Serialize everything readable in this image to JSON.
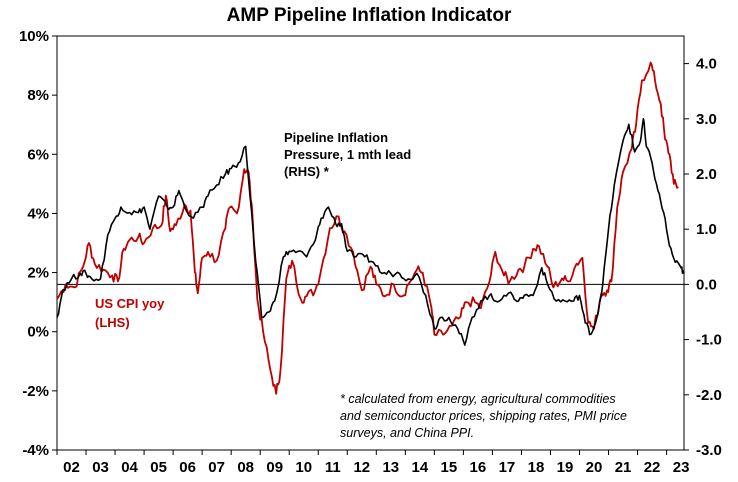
{
  "chart_data": {
    "type": "line",
    "title": "AMP Pipeline Inflation Indicator",
    "x_labels": [
      "02",
      "03",
      "04",
      "05",
      "06",
      "07",
      "08",
      "09",
      "10",
      "11",
      "12",
      "13",
      "14",
      "15",
      "16",
      "17",
      "18",
      "19",
      "20",
      "21",
      "22",
      "23"
    ],
    "x_range": [
      2002.0,
      2023.6
    ],
    "y_left": {
      "ticks": [
        "-4%",
        "-2%",
        "0%",
        "2%",
        "4%",
        "6%",
        "8%",
        "10%"
      ],
      "range": [
        -4,
        10
      ]
    },
    "y_right": {
      "ticks": [
        "-3.0",
        "-2.0",
        "-1.0",
        "0.0",
        "1.0",
        "2.0",
        "3.0",
        "4.0"
      ],
      "range": [
        -3,
        4.5
      ]
    },
    "zero_line_right": 0.0,
    "series": [
      {
        "name": "US CPI yoy (LHS)",
        "label_lines": [
          "US CPI yoy",
          "(LHS)"
        ],
        "axis": "left",
        "color": "#c00000",
        "points": [
          [
            2002.0,
            1.1
          ],
          [
            2002.3,
            1.6
          ],
          [
            2002.6,
            1.5
          ],
          [
            2002.9,
            2.2
          ],
          [
            2003.1,
            3.0
          ],
          [
            2003.3,
            2.3
          ],
          [
            2003.6,
            2.1
          ],
          [
            2003.9,
            1.9
          ],
          [
            2004.1,
            1.7
          ],
          [
            2004.3,
            2.8
          ],
          [
            2004.5,
            3.1
          ],
          [
            2004.8,
            3.2
          ],
          [
            2005.0,
            3.0
          ],
          [
            2005.3,
            3.5
          ],
          [
            2005.6,
            3.6
          ],
          [
            2005.75,
            4.6
          ],
          [
            2005.9,
            3.4
          ],
          [
            2006.1,
            3.6
          ],
          [
            2006.4,
            4.3
          ],
          [
            2006.6,
            4.1
          ],
          [
            2006.75,
            2.0
          ],
          [
            2006.85,
            1.3
          ],
          [
            2007.0,
            2.5
          ],
          [
            2007.2,
            2.7
          ],
          [
            2007.5,
            2.4
          ],
          [
            2007.8,
            3.5
          ],
          [
            2007.95,
            4.2
          ],
          [
            2008.2,
            4.0
          ],
          [
            2008.45,
            5.5
          ],
          [
            2008.6,
            5.4
          ],
          [
            2008.75,
            3.7
          ],
          [
            2008.9,
            1.1
          ],
          [
            2009.1,
            0.0
          ],
          [
            2009.35,
            -1.3
          ],
          [
            2009.55,
            -2.1
          ],
          [
            2009.7,
            -1.3
          ],
          [
            2009.9,
            1.8
          ],
          [
            2010.1,
            2.4
          ],
          [
            2010.4,
            1.1
          ],
          [
            2010.6,
            1.2
          ],
          [
            2010.9,
            1.4
          ],
          [
            2011.1,
            2.1
          ],
          [
            2011.4,
            3.5
          ],
          [
            2011.7,
            3.9
          ],
          [
            2011.9,
            3.4
          ],
          [
            2012.2,
            2.7
          ],
          [
            2012.5,
            1.4
          ],
          [
            2012.8,
            2.2
          ],
          [
            2013.0,
            1.6
          ],
          [
            2013.3,
            1.2
          ],
          [
            2013.6,
            1.6
          ],
          [
            2013.9,
            1.2
          ],
          [
            2014.1,
            1.6
          ],
          [
            2014.4,
            2.1
          ],
          [
            2014.6,
            2.0
          ],
          [
            2014.9,
            0.8
          ],
          [
            2015.0,
            -0.1
          ],
          [
            2015.3,
            -0.1
          ],
          [
            2015.6,
            0.2
          ],
          [
            2015.9,
            0.5
          ],
          [
            2016.1,
            1.0
          ],
          [
            2016.4,
            1.0
          ],
          [
            2016.6,
            0.8
          ],
          [
            2016.9,
            1.7
          ],
          [
            2017.1,
            2.7
          ],
          [
            2017.4,
            1.9
          ],
          [
            2017.6,
            1.7
          ],
          [
            2017.9,
            2.1
          ],
          [
            2018.1,
            2.2
          ],
          [
            2018.4,
            2.8
          ],
          [
            2018.6,
            2.9
          ],
          [
            2018.9,
            2.2
          ],
          [
            2019.1,
            1.5
          ],
          [
            2019.4,
            1.8
          ],
          [
            2019.6,
            1.7
          ],
          [
            2019.9,
            2.3
          ],
          [
            2020.1,
            2.5
          ],
          [
            2020.3,
            0.3
          ],
          [
            2020.5,
            0.1
          ],
          [
            2020.75,
            1.3
          ],
          [
            2020.95,
            1.4
          ],
          [
            2021.1,
            1.7
          ],
          [
            2021.3,
            4.2
          ],
          [
            2021.5,
            5.4
          ],
          [
            2021.8,
            6.2
          ],
          [
            2021.95,
            7.0
          ],
          [
            2022.15,
            8.5
          ],
          [
            2022.45,
            9.1
          ],
          [
            2022.6,
            8.5
          ],
          [
            2022.8,
            7.7
          ],
          [
            2022.95,
            6.5
          ],
          [
            2023.1,
            6.0
          ],
          [
            2023.25,
            5.0
          ],
          [
            2023.4,
            4.9
          ]
        ]
      },
      {
        "name": "Pipeline Inflation Pressure, 1 mth lead (RHS) *",
        "label_lines": [
          "Pipeline Inflation",
          "Pressure, 1 mth lead",
          "(RHS) *"
        ],
        "axis": "right",
        "color": "#000000",
        "points": [
          [
            2002.0,
            -0.6
          ],
          [
            2002.2,
            -0.1
          ],
          [
            2002.5,
            0.1
          ],
          [
            2002.8,
            0.2
          ],
          [
            2003.0,
            0.2
          ],
          [
            2003.2,
            0.1
          ],
          [
            2003.5,
            0.1
          ],
          [
            2003.75,
            0.9
          ],
          [
            2004.0,
            1.2
          ],
          [
            2004.2,
            1.4
          ],
          [
            2004.5,
            1.3
          ],
          [
            2004.8,
            1.3
          ],
          [
            2005.0,
            1.4
          ],
          [
            2005.2,
            1.0
          ],
          [
            2005.5,
            1.6
          ],
          [
            2005.8,
            1.4
          ],
          [
            2006.0,
            1.4
          ],
          [
            2006.2,
            1.7
          ],
          [
            2006.4,
            1.4
          ],
          [
            2006.7,
            1.2
          ],
          [
            2007.0,
            1.4
          ],
          [
            2007.2,
            1.6
          ],
          [
            2007.5,
            1.8
          ],
          [
            2007.8,
            2.0
          ],
          [
            2008.0,
            2.1
          ],
          [
            2008.25,
            2.2
          ],
          [
            2008.5,
            2.5
          ],
          [
            2008.65,
            1.6
          ],
          [
            2008.85,
            0.4
          ],
          [
            2009.05,
            -0.6
          ],
          [
            2009.3,
            -0.5
          ],
          [
            2009.5,
            -0.3
          ],
          [
            2009.8,
            0.5
          ],
          [
            2010.0,
            0.6
          ],
          [
            2010.3,
            0.6
          ],
          [
            2010.6,
            0.5
          ],
          [
            2010.9,
            0.8
          ],
          [
            2011.1,
            1.2
          ],
          [
            2011.35,
            1.4
          ],
          [
            2011.6,
            1.1
          ],
          [
            2011.8,
            1.1
          ],
          [
            2012.0,
            0.6
          ],
          [
            2012.3,
            0.5
          ],
          [
            2012.6,
            0.5
          ],
          [
            2012.9,
            0.4
          ],
          [
            2013.2,
            0.2
          ],
          [
            2013.5,
            0.2
          ],
          [
            2013.8,
            0.2
          ],
          [
            2014.1,
            0.1
          ],
          [
            2014.4,
            0.2
          ],
          [
            2014.7,
            -0.2
          ],
          [
            2015.0,
            -0.8
          ],
          [
            2015.2,
            -0.6
          ],
          [
            2015.5,
            -0.6
          ],
          [
            2015.8,
            -0.8
          ],
          [
            2016.05,
            -1.1
          ],
          [
            2016.3,
            -0.6
          ],
          [
            2016.6,
            -0.3
          ],
          [
            2016.9,
            -0.2
          ],
          [
            2017.1,
            -0.3
          ],
          [
            2017.4,
            -0.2
          ],
          [
            2017.7,
            -0.2
          ],
          [
            2017.9,
            -0.3
          ],
          [
            2018.1,
            -0.2
          ],
          [
            2018.4,
            -0.2
          ],
          [
            2018.7,
            0.3
          ],
          [
            2018.9,
            0.0
          ],
          [
            2019.2,
            -0.3
          ],
          [
            2019.5,
            -0.3
          ],
          [
            2019.8,
            -0.3
          ],
          [
            2020.0,
            -0.2
          ],
          [
            2020.2,
            -0.7
          ],
          [
            2020.4,
            -0.9
          ],
          [
            2020.6,
            -0.6
          ],
          [
            2020.8,
            0.0
          ],
          [
            2021.0,
            1.0
          ],
          [
            2021.2,
            1.8
          ],
          [
            2021.5,
            2.6
          ],
          [
            2021.7,
            2.9
          ],
          [
            2021.9,
            2.4
          ],
          [
            2022.1,
            2.6
          ],
          [
            2022.2,
            3.0
          ],
          [
            2022.3,
            2.5
          ],
          [
            2022.5,
            2.2
          ],
          [
            2022.7,
            1.7
          ],
          [
            2022.9,
            1.3
          ],
          [
            2023.1,
            0.7
          ],
          [
            2023.3,
            0.4
          ],
          [
            2023.5,
            0.3
          ],
          [
            2023.6,
            0.2
          ]
        ]
      }
    ],
    "footnote_lines": [
      "* calculated from energy, agricultural commodities",
      "and semiconductor prices, shipping rates, PMI price",
      "surveys, and China PPI."
    ],
    "grid": false,
    "legend": "none (inline labels)"
  }
}
